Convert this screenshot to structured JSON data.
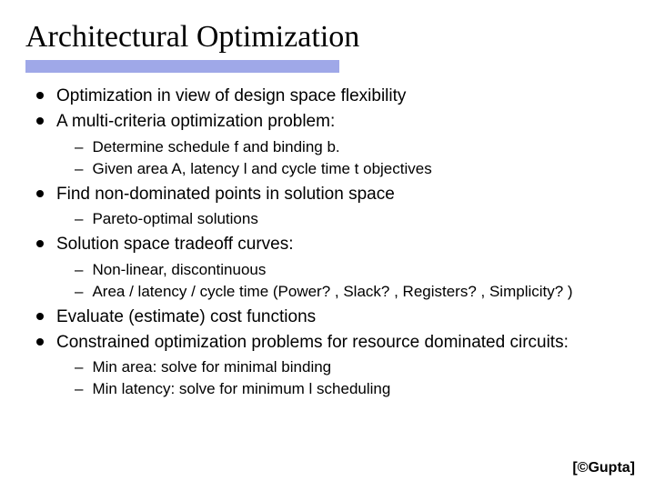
{
  "title": "Architectural Optimization",
  "underline_color": "#9fa8e8",
  "bullets": {
    "b1": "Optimization in view of design space flexibility",
    "b2": "A multi-criteria optimization problem:",
    "b2_s1": "Determine schedule f and binding b.",
    "b2_s2": "Given area A, latency l and cycle time t objectives",
    "b3": "Find non-dominated points in solution space",
    "b3_s1": "Pareto-optimal solutions",
    "b4": "Solution space tradeoff curves:",
    "b4_s1": "Non-linear, discontinuous",
    "b4_s2": "Area / latency / cycle time (Power? , Slack? , Registers? , Simplicity? )",
    "b5": "Evaluate (estimate) cost functions",
    "b6": "Constrained optimization problems for resource dominated circuits:",
    "b6_s1": "Min area: solve for minimal binding",
    "b6_s2": "Min latency: solve for minimum l scheduling"
  },
  "footer": "[©Gupta]"
}
